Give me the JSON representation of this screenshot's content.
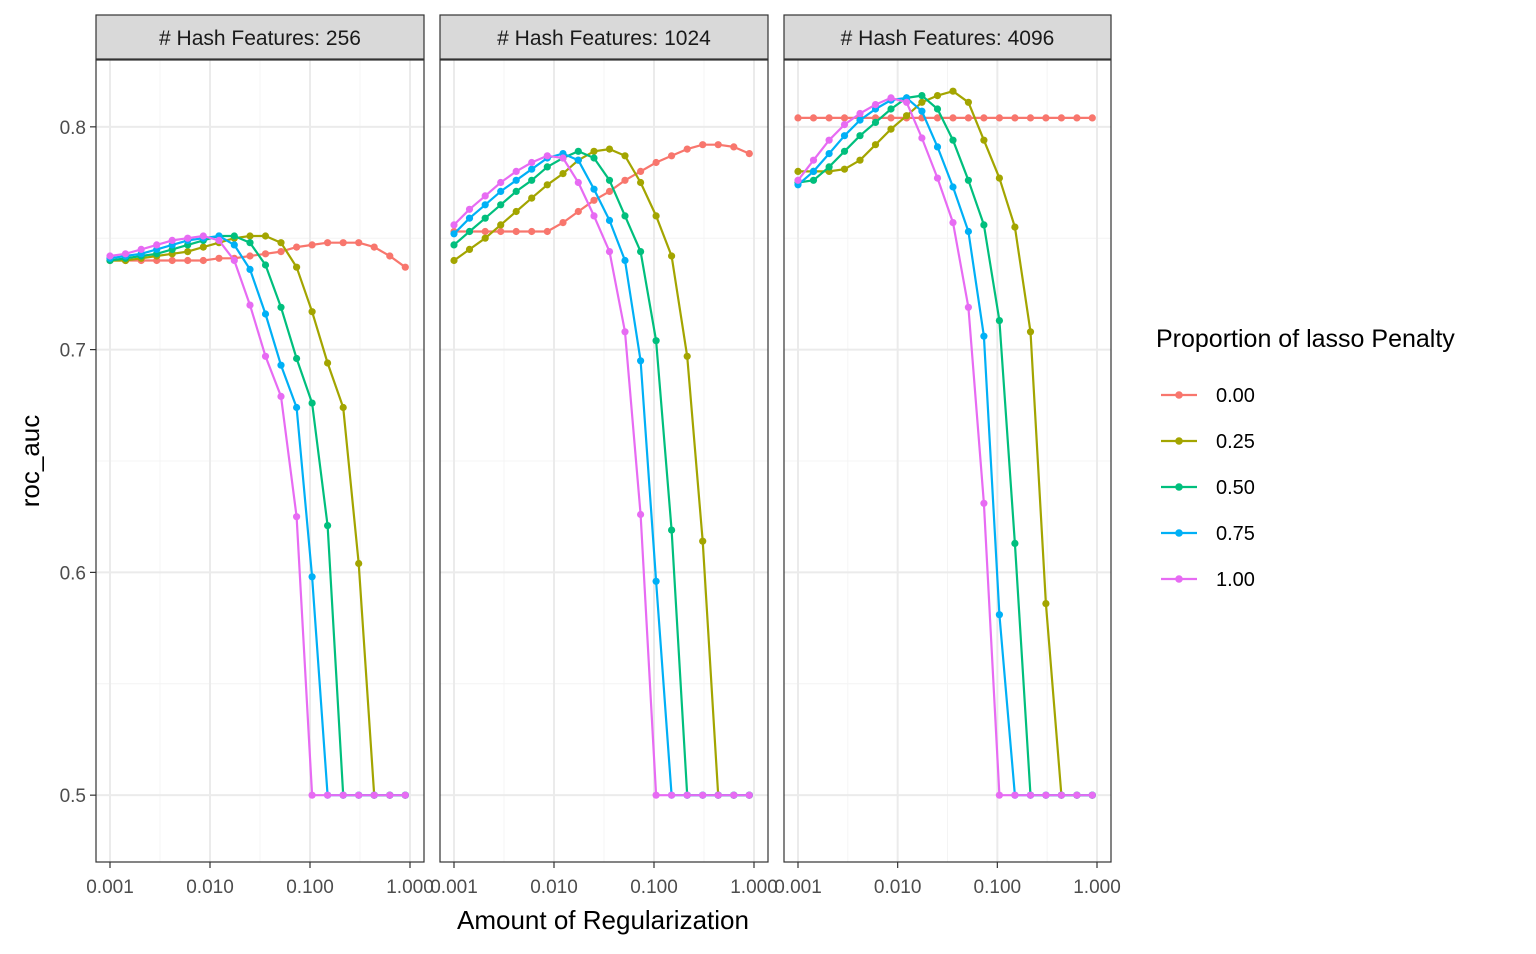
{
  "colors": {
    "0.00": "#F8766D",
    "0.25": "#A3A500",
    "0.50": "#00BF7D",
    "0.75": "#00B0F6",
    "1.00": "#E76BF3",
    "grid_major": "#EBEBEB",
    "grid_minor": "#F4F4F4",
    "strip_fill": "#D9D9D9",
    "panel_border": "#333333",
    "tick_text": "#4D4D4D"
  },
  "chart_data": {
    "type": "line",
    "xlabel": "Amount of Regularization",
    "ylabel": "roc_auc",
    "x_scale": "log10",
    "xlim": [
      0.001,
      1.0
    ],
    "ylim": [
      0.47,
      0.83
    ],
    "x_ticks": [
      "0.001",
      "0.010",
      "0.100",
      "1.000"
    ],
    "y_ticks": [
      "0.5",
      "0.6",
      "0.7",
      "0.8"
    ],
    "grid": true,
    "legend": {
      "title": "Proportion of lasso Penalty",
      "placement": "right",
      "entries": [
        "0.00",
        "0.25",
        "0.50",
        "0.75",
        "1.00"
      ]
    },
    "x": [
      0.001,
      0.00143,
      0.00205,
      0.00293,
      0.00419,
      0.00599,
      0.00857,
      0.0123,
      0.0175,
      0.0251,
      0.0359,
      0.0513,
      0.0734,
      0.105,
      0.15,
      0.215,
      0.307,
      0.439,
      0.628,
      0.898
    ],
    "panels": [
      {
        "strip": "# Hash Features: 256",
        "series": [
          {
            "name": "0.00",
            "values": [
              0.74,
              0.74,
              0.74,
              0.74,
              0.74,
              0.74,
              0.74,
              0.741,
              0.741,
              0.742,
              0.743,
              0.744,
              0.746,
              0.747,
              0.748,
              0.748,
              0.748,
              0.746,
              0.742,
              0.737
            ]
          },
          {
            "name": "0.25",
            "values": [
              0.74,
              0.74,
              0.741,
              0.742,
              0.743,
              0.744,
              0.746,
              0.748,
              0.75,
              0.751,
              0.751,
              0.748,
              0.737,
              0.717,
              0.694,
              0.674,
              0.604,
              0.5,
              0.5,
              0.5
            ]
          },
          {
            "name": "0.50",
            "values": [
              0.74,
              0.741,
              0.742,
              0.743,
              0.745,
              0.747,
              0.749,
              0.751,
              0.751,
              0.748,
              0.738,
              0.719,
              0.696,
              0.676,
              0.621,
              0.5,
              0.5,
              0.5,
              0.5,
              0.5
            ]
          },
          {
            "name": "0.75",
            "values": [
              0.741,
              0.742,
              0.743,
              0.745,
              0.747,
              0.749,
              0.75,
              0.751,
              0.747,
              0.736,
              0.716,
              0.693,
              0.674,
              0.598,
              0.5,
              0.5,
              0.5,
              0.5,
              0.5,
              0.5
            ]
          },
          {
            "name": "1.00",
            "values": [
              0.742,
              0.743,
              0.745,
              0.747,
              0.749,
              0.75,
              0.751,
              0.749,
              0.74,
              0.72,
              0.697,
              0.679,
              0.625,
              0.5,
              0.5,
              0.5,
              0.5,
              0.5,
              0.5,
              0.5
            ]
          }
        ]
      },
      {
        "strip": "# Hash Features: 1024",
        "series": [
          {
            "name": "0.00",
            "values": [
              0.753,
              0.753,
              0.753,
              0.753,
              0.753,
              0.753,
              0.753,
              0.757,
              0.762,
              0.767,
              0.771,
              0.776,
              0.78,
              0.784,
              0.787,
              0.79,
              0.792,
              0.792,
              0.791,
              0.788
            ]
          },
          {
            "name": "0.25",
            "values": [
              0.74,
              0.745,
              0.75,
              0.756,
              0.762,
              0.768,
              0.774,
              0.779,
              0.785,
              0.789,
              0.79,
              0.787,
              0.775,
              0.76,
              0.742,
              0.697,
              0.614,
              0.5,
              0.5,
              0.5
            ]
          },
          {
            "name": "0.50",
            "values": [
              0.747,
              0.753,
              0.759,
              0.765,
              0.771,
              0.776,
              0.782,
              0.786,
              0.789,
              0.786,
              0.776,
              0.76,
              0.744,
              0.704,
              0.619,
              0.5,
              0.5,
              0.5,
              0.5,
              0.5
            ]
          },
          {
            "name": "0.75",
            "values": [
              0.752,
              0.759,
              0.765,
              0.771,
              0.776,
              0.781,
              0.786,
              0.788,
              0.785,
              0.772,
              0.758,
              0.74,
              0.695,
              0.596,
              0.5,
              0.5,
              0.5,
              0.5,
              0.5,
              0.5
            ]
          },
          {
            "name": "1.00",
            "values": [
              0.756,
              0.763,
              0.769,
              0.775,
              0.78,
              0.784,
              0.787,
              0.786,
              0.775,
              0.76,
              0.744,
              0.708,
              0.626,
              0.5,
              0.5,
              0.5,
              0.5,
              0.5,
              0.5,
              0.5
            ]
          }
        ]
      },
      {
        "strip": "# Hash Features: 4096",
        "series": [
          {
            "name": "0.00",
            "values": [
              0.804,
              0.804,
              0.804,
              0.804,
              0.804,
              0.804,
              0.804,
              0.804,
              0.804,
              0.804,
              0.804,
              0.804,
              0.804,
              0.804,
              0.804,
              0.804,
              0.804,
              0.804,
              0.804,
              0.804
            ]
          },
          {
            "name": "0.25",
            "values": [
              0.78,
              0.78,
              0.78,
              0.781,
              0.785,
              0.792,
              0.799,
              0.805,
              0.811,
              0.814,
              0.816,
              0.811,
              0.794,
              0.777,
              0.755,
              0.708,
              0.586,
              0.5,
              0.5,
              0.5
            ]
          },
          {
            "name": "0.50",
            "values": [
              0.775,
              0.776,
              0.782,
              0.789,
              0.796,
              0.802,
              0.808,
              0.813,
              0.814,
              0.808,
              0.794,
              0.776,
              0.756,
              0.713,
              0.613,
              0.5,
              0.5,
              0.5,
              0.5,
              0.5
            ]
          },
          {
            "name": "0.75",
            "values": [
              0.774,
              0.78,
              0.788,
              0.796,
              0.803,
              0.808,
              0.812,
              0.813,
              0.807,
              0.791,
              0.773,
              0.753,
              0.706,
              0.581,
              0.5,
              0.5,
              0.5,
              0.5,
              0.5,
              0.5
            ]
          },
          {
            "name": "1.00",
            "values": [
              0.776,
              0.785,
              0.794,
              0.801,
              0.806,
              0.81,
              0.813,
              0.811,
              0.795,
              0.777,
              0.757,
              0.719,
              0.631,
              0.5,
              0.5,
              0.5,
              0.5,
              0.5,
              0.5,
              0.5
            ]
          }
        ]
      }
    ]
  }
}
